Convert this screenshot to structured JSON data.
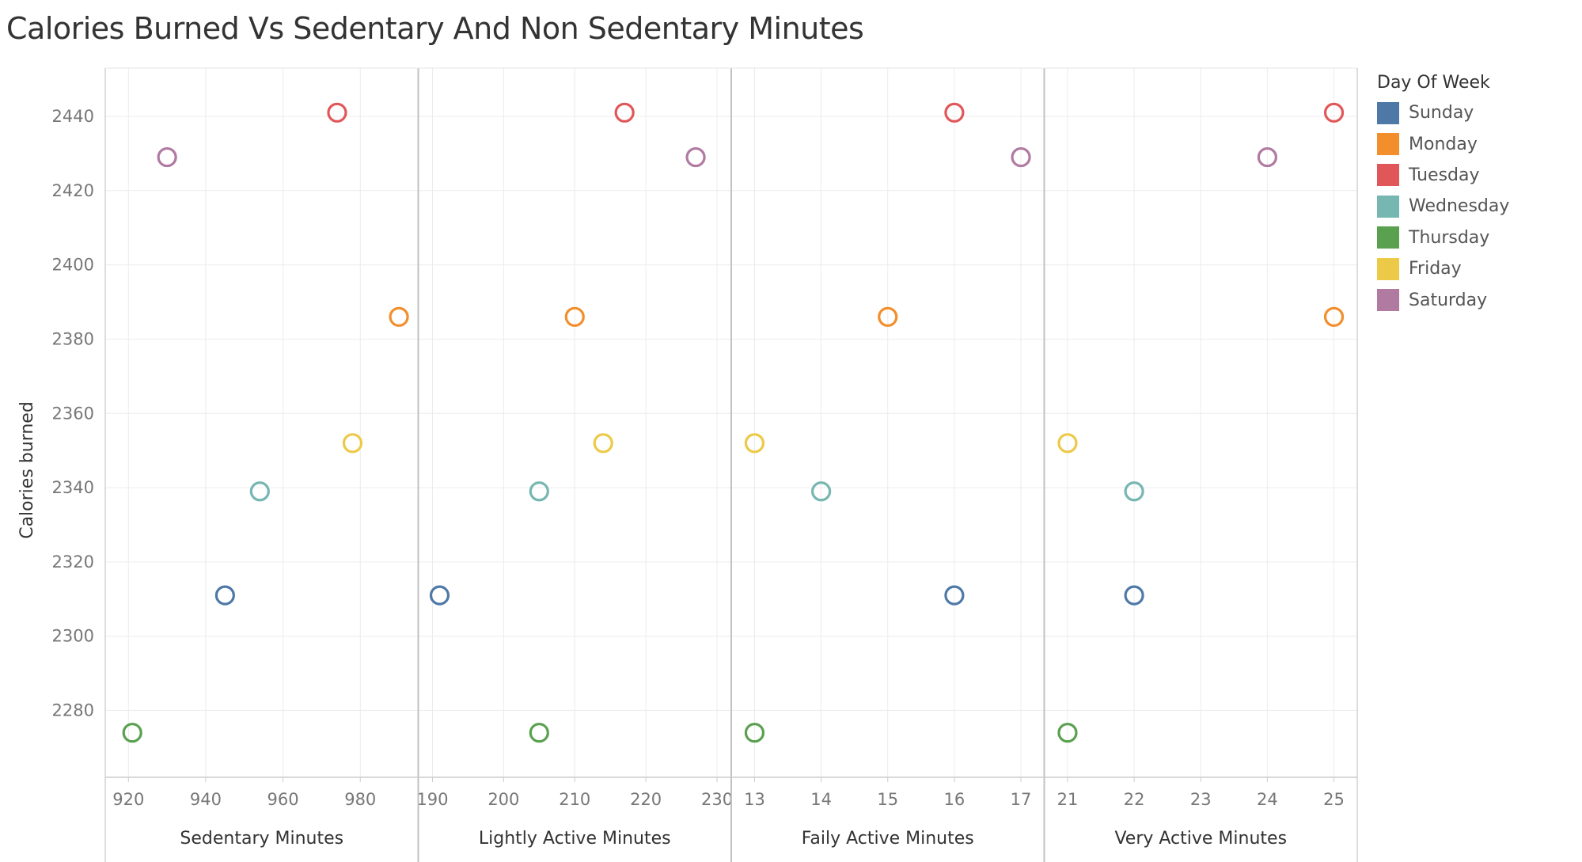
{
  "title": "Calories Burned Vs Sedentary And Non Sedentary Minutes",
  "legend": {
    "title": "Day Of Week",
    "items": [
      {
        "label": "Sunday",
        "color": "#4e79a7"
      },
      {
        "label": "Monday",
        "color": "#f28e2b"
      },
      {
        "label": "Tuesday",
        "color": "#e15759"
      },
      {
        "label": "Wednesday",
        "color": "#76b7b2"
      },
      {
        "label": "Thursday",
        "color": "#59a14f"
      },
      {
        "label": "Friday",
        "color": "#edc948"
      },
      {
        "label": "Saturday",
        "color": "#b07aa1"
      }
    ]
  },
  "chart_data": {
    "type": "scatter",
    "title": "Calories Burned Vs Sedentary And Non Sedentary Minutes",
    "ylabel": "Calories burned",
    "ylim": [
      2262,
      2453
    ],
    "yticks": [
      2280,
      2300,
      2320,
      2340,
      2360,
      2380,
      2400,
      2420,
      2440
    ],
    "grid": true,
    "legend_position": "right",
    "panels": [
      {
        "xlabel": "Sedentary Minutes",
        "xlim": [
          914,
          995
        ],
        "xticks": [
          920,
          940,
          960,
          980
        ],
        "points": [
          {
            "day": "Sunday",
            "x": 945,
            "y": 2311
          },
          {
            "day": "Monday",
            "x": 990,
            "y": 2386
          },
          {
            "day": "Tuesday",
            "x": 974,
            "y": 2441
          },
          {
            "day": "Wednesday",
            "x": 954,
            "y": 2339
          },
          {
            "day": "Thursday",
            "x": 921,
            "y": 2274
          },
          {
            "day": "Friday",
            "x": 978,
            "y": 2352
          },
          {
            "day": "Saturday",
            "x": 930,
            "y": 2429
          }
        ]
      },
      {
        "xlabel": "Lightly Active Minutes",
        "xlim": [
          188,
          232
        ],
        "xticks": [
          190,
          200,
          210,
          220,
          230
        ],
        "points": [
          {
            "day": "Sunday",
            "x": 191,
            "y": 2311
          },
          {
            "day": "Monday",
            "x": 210,
            "y": 2386
          },
          {
            "day": "Tuesday",
            "x": 217,
            "y": 2441
          },
          {
            "day": "Wednesday",
            "x": 205,
            "y": 2339
          },
          {
            "day": "Thursday",
            "x": 205,
            "y": 2274
          },
          {
            "day": "Friday",
            "x": 214,
            "y": 2352
          },
          {
            "day": "Saturday",
            "x": 227,
            "y": 2429
          }
        ]
      },
      {
        "xlabel": "Faily Active Minutes",
        "xlim": [
          12.65,
          17.35
        ],
        "xticks": [
          13,
          14,
          15,
          16,
          17
        ],
        "points": [
          {
            "day": "Sunday",
            "x": 16,
            "y": 2311
          },
          {
            "day": "Monday",
            "x": 15,
            "y": 2386
          },
          {
            "day": "Tuesday",
            "x": 16,
            "y": 2441
          },
          {
            "day": "Wednesday",
            "x": 14,
            "y": 2339
          },
          {
            "day": "Thursday",
            "x": 13,
            "y": 2274
          },
          {
            "day": "Friday",
            "x": 13,
            "y": 2352
          },
          {
            "day": "Saturday",
            "x": 17,
            "y": 2429
          }
        ]
      },
      {
        "xlabel": "Very Active Minutes",
        "xlim": [
          20.65,
          25.35
        ],
        "xticks": [
          21,
          22,
          23,
          24,
          25
        ],
        "points": [
          {
            "day": "Sunday",
            "x": 22,
            "y": 2311
          },
          {
            "day": "Monday",
            "x": 25,
            "y": 2386
          },
          {
            "day": "Tuesday",
            "x": 25,
            "y": 2441
          },
          {
            "day": "Wednesday",
            "x": 22,
            "y": 2339
          },
          {
            "day": "Thursday",
            "x": 21,
            "y": 2274
          },
          {
            "day": "Friday",
            "x": 21,
            "y": 2352
          },
          {
            "day": "Saturday",
            "x": 24,
            "y": 2429
          }
        ]
      }
    ]
  }
}
